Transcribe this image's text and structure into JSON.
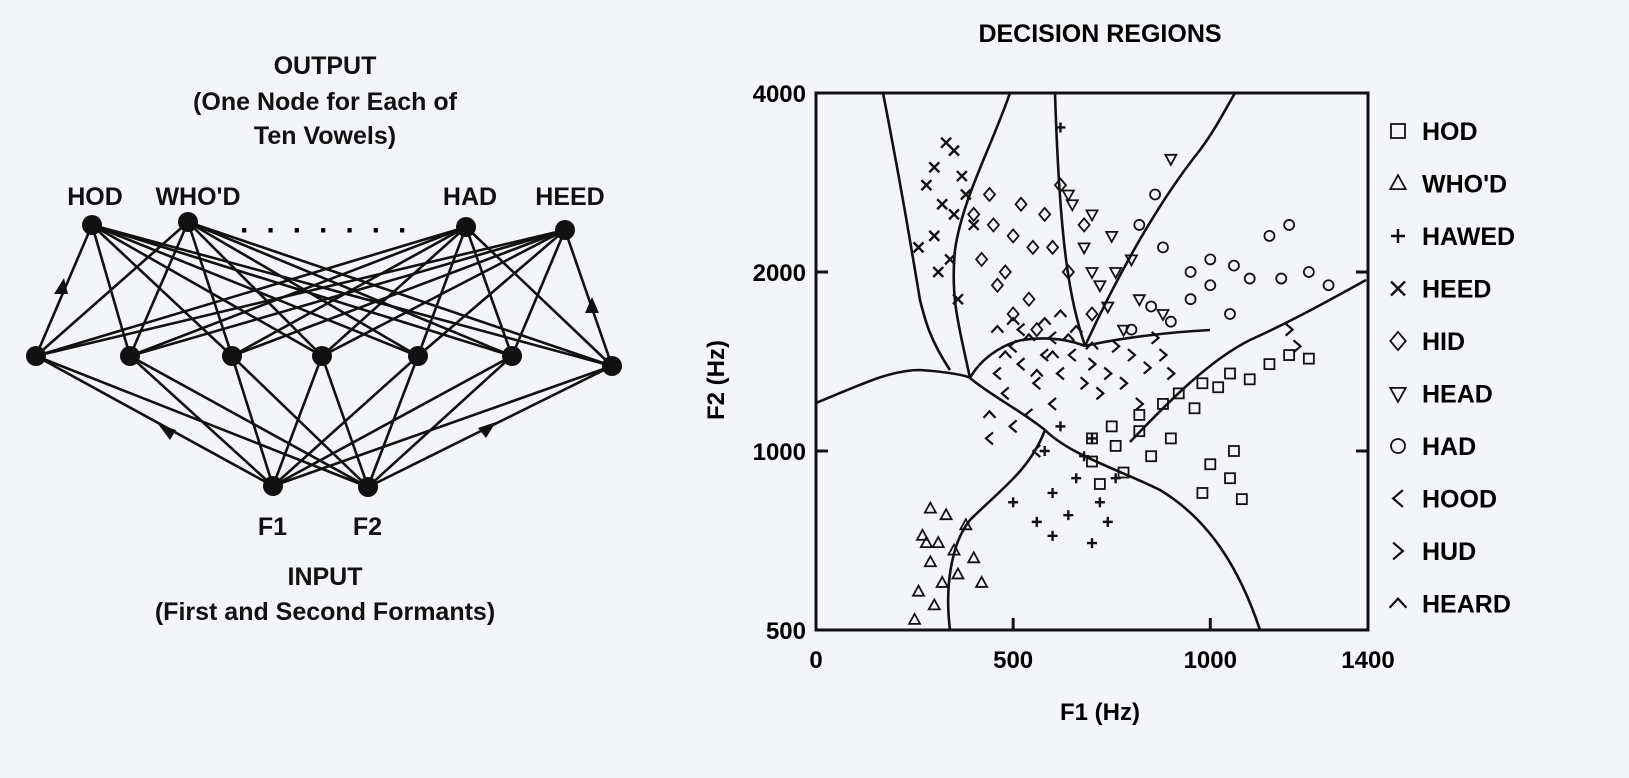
{
  "network": {
    "output_title": "OUTPUT",
    "output_subtitle_line1": "(One Node for Each of",
    "output_subtitle_line2": "Ten Vowels)",
    "output_nodes": [
      "HOD",
      "WHO'D",
      "HAD",
      "HEED"
    ],
    "ellipsis": "· · · · · · ·",
    "input_nodes": [
      "F1",
      "F2"
    ],
    "input_title": "INPUT",
    "input_subtitle": "(First and Second Formants)"
  },
  "chart_data": {
    "type": "scatter",
    "title": "DECISION REGIONS",
    "xlabel": "F1 (Hz)",
    "ylabel": "F2 (Hz)",
    "xlim": [
      0,
      1400
    ],
    "ylim": [
      500,
      4000
    ],
    "y_scale": "log",
    "x_ticks": [
      0,
      500,
      1000,
      1400
    ],
    "y_ticks": [
      500,
      1000,
      2000,
      4000
    ],
    "legend_position": "right",
    "series": [
      {
        "name": "HOD",
        "marker": "square",
        "points": [
          [
            750,
            1100
          ],
          [
            820,
            1150
          ],
          [
            880,
            1200
          ],
          [
            920,
            1250
          ],
          [
            980,
            1300
          ],
          [
            1050,
            1350
          ],
          [
            1100,
            1320
          ],
          [
            1150,
            1400
          ],
          [
            1200,
            1450
          ],
          [
            1250,
            1430
          ],
          [
            1020,
            1280
          ],
          [
            960,
            1180
          ],
          [
            1000,
            950
          ],
          [
            1050,
            900
          ],
          [
            980,
            850
          ],
          [
            1080,
            830
          ],
          [
            900,
            1050
          ],
          [
            850,
            980
          ],
          [
            780,
            920
          ],
          [
            720,
            880
          ],
          [
            700,
            960
          ],
          [
            760,
            1020
          ],
          [
            820,
            1080
          ],
          [
            700,
            1050
          ],
          [
            1060,
            1000
          ]
        ]
      },
      {
        "name": "WHO'D",
        "marker": "triangle",
        "points": [
          [
            270,
            720
          ],
          [
            290,
            650
          ],
          [
            320,
            600
          ],
          [
            300,
            550
          ],
          [
            260,
            580
          ],
          [
            280,
            700
          ],
          [
            350,
            680
          ],
          [
            380,
            750
          ],
          [
            330,
            780
          ],
          [
            310,
            700
          ],
          [
            360,
            620
          ],
          [
            400,
            660
          ],
          [
            250,
            520
          ],
          [
            420,
            600
          ],
          [
            290,
            800
          ]
        ]
      },
      {
        "name": "HAWED",
        "marker": "plus",
        "points": [
          [
            620,
            1100
          ],
          [
            700,
            1050
          ],
          [
            660,
            900
          ],
          [
            720,
            820
          ],
          [
            640,
            780
          ],
          [
            560,
            760
          ],
          [
            500,
            820
          ],
          [
            600,
            850
          ],
          [
            680,
            980
          ],
          [
            740,
            760
          ],
          [
            600,
            720
          ],
          [
            700,
            700
          ],
          [
            580,
            1000
          ],
          [
            760,
            900
          ],
          [
            620,
            3500
          ]
        ]
      },
      {
        "name": "HEED",
        "marker": "x",
        "points": [
          [
            330,
            3300
          ],
          [
            350,
            3200
          ],
          [
            300,
            3000
          ],
          [
            370,
            2900
          ],
          [
            320,
            2600
          ],
          [
            280,
            2800
          ],
          [
            350,
            2500
          ],
          [
            300,
            2300
          ],
          [
            380,
            2700
          ],
          [
            260,
            2200
          ],
          [
            400,
            2400
          ],
          [
            340,
            2100
          ],
          [
            310,
            2000
          ],
          [
            360,
            1800
          ]
        ]
      },
      {
        "name": "HID",
        "marker": "diamond",
        "points": [
          [
            400,
            2500
          ],
          [
            450,
            2400
          ],
          [
            500,
            2300
          ],
          [
            550,
            2200
          ],
          [
            480,
            2000
          ],
          [
            420,
            2100
          ],
          [
            520,
            2600
          ],
          [
            580,
            2500
          ],
          [
            600,
            2200
          ],
          [
            460,
            1900
          ],
          [
            540,
            1800
          ],
          [
            640,
            2000
          ],
          [
            680,
            2400
          ],
          [
            620,
            2800
          ],
          [
            700,
            1700
          ],
          [
            440,
            2700
          ],
          [
            500,
            1700
          ],
          [
            560,
            1600
          ]
        ]
      },
      {
        "name": "HEAD",
        "marker": "triangle-down",
        "points": [
          [
            650,
            2600
          ],
          [
            700,
            2500
          ],
          [
            750,
            2300
          ],
          [
            680,
            2200
          ],
          [
            760,
            2000
          ],
          [
            800,
            2100
          ],
          [
            720,
            1900
          ],
          [
            820,
            1800
          ],
          [
            640,
            2700
          ],
          [
            880,
            1700
          ],
          [
            780,
            1600
          ],
          [
            740,
            1750
          ],
          [
            700,
            2000
          ],
          [
            900,
            3100
          ]
        ]
      },
      {
        "name": "HAD",
        "marker": "circle",
        "points": [
          [
            820,
            2400
          ],
          [
            880,
            2200
          ],
          [
            950,
            2000
          ],
          [
            1000,
            1900
          ],
          [
            1100,
            1950
          ],
          [
            1150,
            2300
          ],
          [
            1200,
            2400
          ],
          [
            1250,
            2000
          ],
          [
            950,
            1800
          ],
          [
            1050,
            1700
          ],
          [
            850,
            1750
          ],
          [
            800,
            1600
          ],
          [
            900,
            1650
          ],
          [
            1180,
            1950
          ],
          [
            1000,
            2100
          ],
          [
            1300,
            1900
          ],
          [
            1060,
            2050
          ],
          [
            860,
            2700
          ]
        ]
      },
      {
        "name": "HOOD",
        "marker": "lt",
        "points": [
          [
            500,
            1500
          ],
          [
            520,
            1400
          ],
          [
            560,
            1300
          ],
          [
            600,
            1200
          ],
          [
            480,
            1250
          ],
          [
            540,
            1150
          ],
          [
            620,
            1350
          ],
          [
            580,
            1450
          ],
          [
            460,
            1350
          ],
          [
            500,
            1100
          ],
          [
            560,
            1000
          ],
          [
            440,
            1050
          ],
          [
            650,
            1450
          ],
          [
            600,
            1550
          ],
          [
            520,
            1600
          ]
        ]
      },
      {
        "name": "HUD",
        "marker": "gt",
        "points": [
          [
            700,
            1400
          ],
          [
            740,
            1350
          ],
          [
            780,
            1300
          ],
          [
            800,
            1450
          ],
          [
            760,
            1500
          ],
          [
            720,
            1250
          ],
          [
            840,
            1380
          ],
          [
            880,
            1450
          ],
          [
            1200,
            1600
          ],
          [
            1220,
            1500
          ],
          [
            820,
            1200
          ],
          [
            680,
            1300
          ],
          [
            860,
            1550
          ],
          [
            900,
            1350
          ]
        ]
      },
      {
        "name": "HEARD",
        "marker": "caret",
        "points": [
          [
            460,
            1600
          ],
          [
            500,
            1650
          ],
          [
            540,
            1550
          ],
          [
            580,
            1650
          ],
          [
            620,
            1700
          ],
          [
            480,
            1450
          ],
          [
            660,
            1600
          ],
          [
            700,
            1500
          ],
          [
            440,
            1150
          ],
          [
            560,
            1350
          ],
          [
            600,
            1450
          ],
          [
            640,
            1550
          ]
        ]
      }
    ]
  }
}
